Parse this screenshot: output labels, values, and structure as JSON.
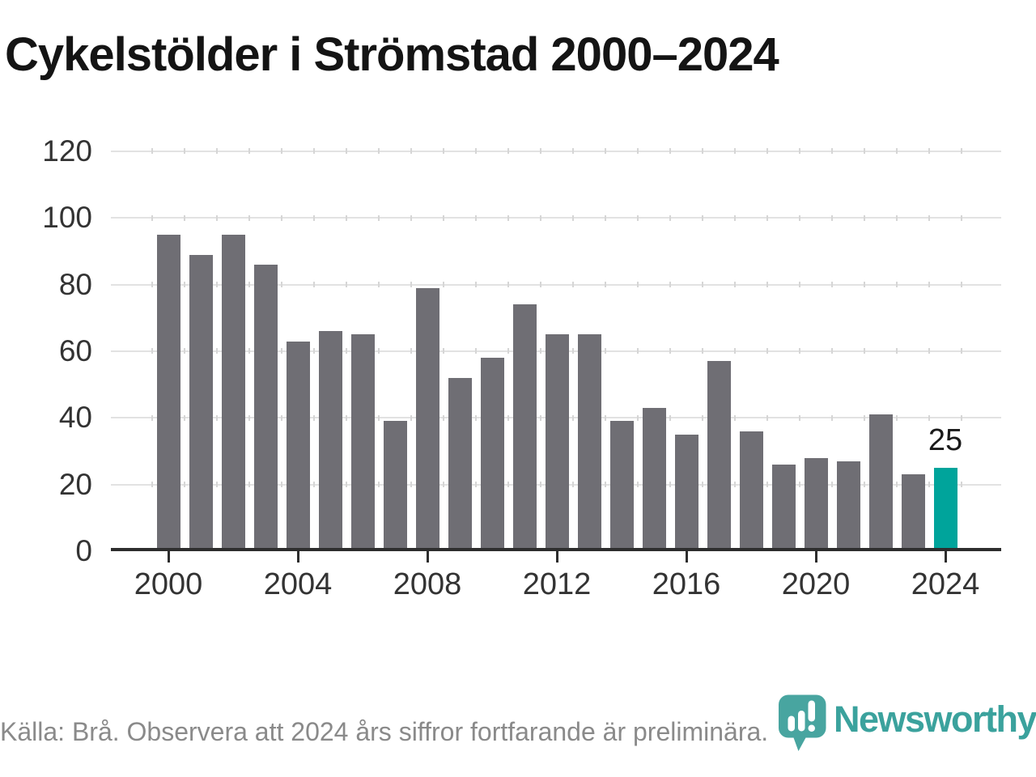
{
  "title": "Cykelstölder i Strömstad 2000–2024",
  "footer": {
    "source_note": "Källa: Brå. Observera att 2024 års siffror fortfarande är preliminära."
  },
  "branding": {
    "wordmark": "Newsworthy",
    "icon": "newsworthy-speech-bubble-bar-chart-icon",
    "color": "#3ba29d"
  },
  "colors": {
    "bar_default": "#6f6e74",
    "bar_highlight": "#00a49b",
    "gridline": "#e2e2e2",
    "axis": "#2d2d2d",
    "title_text": "#141414",
    "tick_text": "#333333",
    "muted_text": "#8a8a8a"
  },
  "chart_data": {
    "type": "bar",
    "title": "Cykelstölder i Strömstad 2000–2024",
    "x": [
      2000,
      2001,
      2002,
      2003,
      2004,
      2005,
      2006,
      2007,
      2008,
      2009,
      2010,
      2011,
      2012,
      2013,
      2014,
      2015,
      2016,
      2017,
      2018,
      2019,
      2020,
      2021,
      2022,
      2023,
      2024
    ],
    "values": [
      95,
      89,
      95,
      86,
      63,
      66,
      65,
      39,
      79,
      52,
      58,
      74,
      65,
      65,
      39,
      43,
      35,
      57,
      36,
      26,
      28,
      27,
      41,
      23,
      25
    ],
    "ylim": [
      0,
      120
    ],
    "y_ticks": [
      0,
      20,
      40,
      60,
      80,
      100,
      120
    ],
    "x_tick_years": [
      2000,
      2004,
      2008,
      2012,
      2016,
      2020,
      2024
    ],
    "grid": true,
    "legend": false,
    "bar_color": "#6f6e74",
    "highlight": {
      "year": 2024,
      "value": 25,
      "label": "25",
      "color": "#00a49b"
    }
  }
}
